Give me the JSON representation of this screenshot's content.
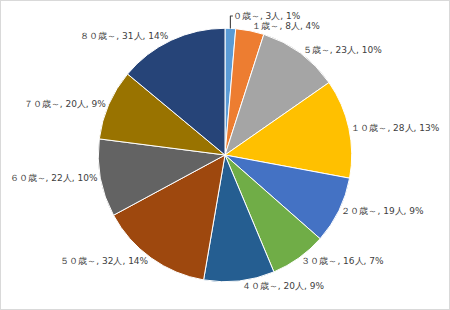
{
  "chart_data": {
    "type": "pie",
    "categories": [
      "０歳～",
      "１歳～",
      "５歳～",
      "１０歳～",
      "２０歳～",
      "３０歳～",
      "４０歳～",
      "５０歳～",
      "６０歳～",
      "７０歳～",
      "８０歳～"
    ],
    "values": [
      3,
      8,
      23,
      28,
      19,
      16,
      20,
      32,
      22,
      20,
      31
    ],
    "value_labels": [
      "０歳～, 3人, 1%",
      "１歳～, 8人, 4%",
      "５歳～, 23人, 10%",
      "１０歳～, 28人, 13%",
      "２０歳～, 19人, 9%",
      "３０歳～, 16人, 7%",
      "４０歳～, 20人, 9%",
      "５０歳～, 32人, 14%",
      "６０歳～, 22人, 10%",
      "７０歳～, 20人, 9%",
      "８０歳～, 31人, 14%"
    ],
    "colors": [
      "#5b9bd5",
      "#ed7d31",
      "#a5a5a5",
      "#ffc000",
      "#4472c4",
      "#70ad47",
      "#255e91",
      "#9e480e",
      "#636363",
      "#997300",
      "#264478"
    ],
    "data_labels": true
  }
}
